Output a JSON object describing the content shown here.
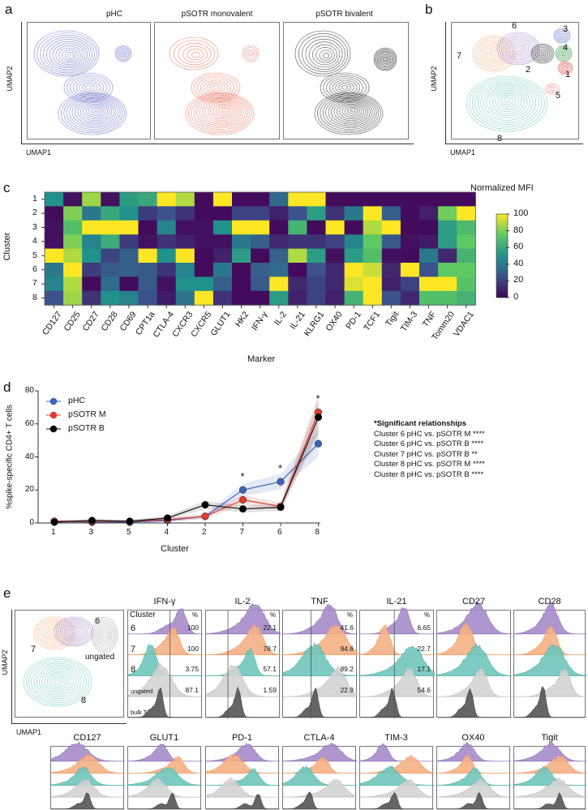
{
  "panels": {
    "a": "a",
    "b": "b",
    "c": "c",
    "d": "d",
    "e": "e"
  },
  "panel_a": {
    "titles": [
      "pHC",
      "pSOTR monovalent",
      "pSOTR bivalent"
    ],
    "xlabel": "UMAP1",
    "ylabel": "UMAP2",
    "colors": [
      "#6b6fc4",
      "#e8735c",
      "#333333"
    ]
  },
  "panel_b": {
    "xlabel": "UMAP1",
    "ylabel": "UMAP2",
    "cluster_labels": [
      "1",
      "2",
      "3",
      "4",
      "5",
      "6",
      "7",
      "8"
    ]
  },
  "chart_data": [
    {
      "type": "heatmap",
      "title": "Normalized MFI",
      "xlabel": "Marker",
      "ylabel": "Cluster",
      "x": [
        "CD127",
        "CD25",
        "CD27",
        "CD28",
        "CD69",
        "CPT1a",
        "CTLA-4",
        "CXCR3",
        "CXCR5",
        "GLUT1",
        "HK2",
        "IFN-γ",
        "IL-2",
        "IL-21",
        "KLRG1",
        "OX40",
        "PD-1",
        "TCF1",
        "Tigit",
        "TIM-3",
        "TNF",
        "Tomm20",
        "VDAC1"
      ],
      "y": [
        "1",
        "2",
        "3",
        "4",
        "5",
        "6",
        "7",
        "8"
      ],
      "values": [
        [
          50,
          5,
          85,
          5,
          55,
          60,
          100,
          88,
          3,
          100,
          3,
          3,
          35,
          100,
          100,
          3,
          3,
          3,
          3,
          3,
          3,
          3,
          3
        ],
        [
          3,
          80,
          40,
          60,
          50,
          18,
          25,
          15,
          3,
          3,
          20,
          20,
          10,
          25,
          55,
          15,
          40,
          100,
          30,
          3,
          10,
          78,
          100
        ],
        [
          5,
          70,
          100,
          100,
          100,
          3,
          45,
          5,
          5,
          50,
          100,
          100,
          3,
          65,
          3,
          100,
          3,
          88,
          100,
          3,
          3,
          55,
          68
        ],
        [
          5,
          80,
          45,
          62,
          18,
          5,
          15,
          10,
          5,
          5,
          40,
          30,
          12,
          15,
          15,
          20,
          45,
          75,
          28,
          5,
          8,
          55,
          75
        ],
        [
          100,
          88,
          50,
          20,
          30,
          100,
          50,
          100,
          3,
          10,
          55,
          3,
          30,
          88,
          55,
          5,
          55,
          70,
          5,
          3,
          40,
          12,
          65
        ],
        [
          40,
          100,
          18,
          28,
          30,
          28,
          15,
          45,
          3,
          40,
          3,
          30,
          35,
          3,
          25,
          12,
          100,
          92,
          12,
          100,
          25,
          75,
          75
        ],
        [
          45,
          88,
          3,
          35,
          3,
          28,
          5,
          50,
          50,
          30,
          3,
          28,
          100,
          12,
          20,
          12,
          95,
          100,
          10,
          20,
          100,
          100,
          72
        ],
        [
          25,
          85,
          15,
          50,
          45,
          25,
          8,
          38,
          100,
          15,
          3,
          3,
          55,
          10,
          20,
          10,
          65,
          100,
          25,
          12,
          70,
          70,
          65
        ]
      ],
      "colorbar": {
        "ticks": [
          "0",
          "20",
          "40",
          "60",
          "80",
          "100"
        ],
        "range": [
          0,
          100
        ]
      }
    },
    {
      "type": "line",
      "xlabel": "Cluster",
      "ylabel": "%spike-specific CD4+ T cells",
      "ylim": [
        0,
        80
      ],
      "yticks": [
        "0",
        "20",
        "40",
        "60",
        "80"
      ],
      "categories": [
        "1",
        "3",
        "5",
        "4",
        "2",
        "7",
        "6",
        "8"
      ],
      "series": [
        {
          "name": "pHC",
          "color": "#3d63b8",
          "values": [
            1,
            0.5,
            0.5,
            1.5,
            4,
            20,
            25,
            48
          ]
        },
        {
          "name": "pSOTR M",
          "color": "#e03c31",
          "values": [
            1,
            1,
            1,
            2,
            4,
            14,
            10,
            67
          ]
        },
        {
          "name": "pSOTR B",
          "color": "#111111",
          "values": [
            0.5,
            1.5,
            1,
            3,
            11,
            8.5,
            9.5,
            64
          ]
        }
      ],
      "significance_markers": [
        {
          "category": "7",
          "label": "*"
        },
        {
          "category": "6",
          "label": "*"
        },
        {
          "category": "8",
          "label": "*"
        }
      ],
      "legend": "top-left"
    }
  ],
  "significance": {
    "title": "*Significant relationships",
    "lines": [
      "Cluster 6 pHC vs. pSOTR M ****",
      "Cluster 6 pHC vs. pSOTR B ****",
      "Cluster 7 pHC vs. pSOTR B **",
      "Cluster 8 pHC vs. pSOTR M ****",
      "Cluster 8 pHC vs. pSOTR B ****"
    ]
  },
  "panel_e": {
    "umap": {
      "labels": [
        "6",
        "7",
        "8",
        "ungated"
      ],
      "xlabel": "UMAP1",
      "ylabel": "UMAP2"
    },
    "row_labels": {
      "header": "Cluster",
      "rows": [
        "6",
        "7",
        "8",
        "ungated",
        "bulk T"
      ],
      "pct": "%"
    },
    "top": [
      {
        "marker": "IFN-γ",
        "pct": [
          "100",
          "100",
          "3.75",
          "87.1"
        ]
      },
      {
        "marker": "IL-2",
        "pct": [
          "22.1",
          "78.7",
          "57.1",
          "1.59"
        ]
      },
      {
        "marker": "TNF",
        "pct": [
          "41.6",
          "94.6",
          "89.2",
          "22.9"
        ]
      },
      {
        "marker": "IL-21",
        "pct": [
          "6.65",
          "22.7",
          "17.1",
          "54.6"
        ]
      },
      {
        "marker": "CD27"
      },
      {
        "marker": "CD28"
      }
    ],
    "bottom": [
      "CD127",
      "GLUT1",
      "PD-1",
      "CTLA-4",
      "TIM-3",
      "OX40",
      "Tigit"
    ]
  }
}
